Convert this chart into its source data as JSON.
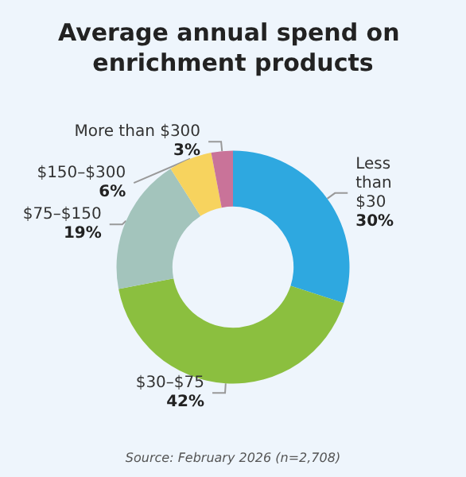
{
  "chart_data": {
    "type": "donut",
    "title": "Average annual spend on enrichment products",
    "categories": [
      "Less than $30",
      "$30–$75",
      "$75–$150",
      "$150–$300",
      "More than $300"
    ],
    "values": [
      30,
      42,
      19,
      6,
      3
    ],
    "colors": [
      "#2ea8e0",
      "#8bbf3f",
      "#a3c4bc",
      "#f7d35e",
      "#c97399"
    ],
    "value_labels": [
      "30%",
      "42%",
      "19%",
      "6%",
      "3%"
    ],
    "legend": false,
    "annotations": [
      "Source: February 2026 (n=2,708)"
    ]
  }
}
